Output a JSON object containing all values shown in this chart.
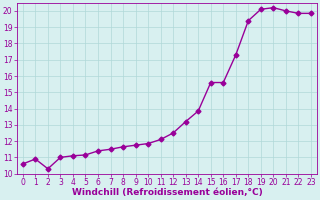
{
  "x": [
    0,
    1,
    2,
    3,
    4,
    5,
    6,
    7,
    8,
    9,
    10,
    11,
    12,
    13,
    14,
    15,
    16,
    17,
    18,
    19,
    20,
    21,
    22,
    23
  ],
  "y": [
    10.6,
    10.9,
    10.3,
    11.0,
    11.1,
    11.15,
    11.4,
    11.5,
    11.65,
    11.75,
    11.85,
    12.1,
    12.5,
    13.2,
    13.85,
    15.6,
    15.6,
    17.3,
    19.4,
    20.1,
    20.2,
    20.0,
    19.85,
    19.85
  ],
  "line_color": "#990099",
  "marker": "D",
  "marker_size": 2.5,
  "bg_color": "#d8f0f0",
  "grid_color": "#b0d8d8",
  "xlabel": "Windchill (Refroidissement éolien,°C)",
  "ylabel": "",
  "xlim": [
    -0.5,
    23.5
  ],
  "ylim": [
    10.0,
    20.5
  ],
  "yticks": [
    10,
    11,
    12,
    13,
    14,
    15,
    16,
    17,
    18,
    19,
    20
  ],
  "xticks": [
    0,
    1,
    2,
    3,
    4,
    5,
    6,
    7,
    8,
    9,
    10,
    11,
    12,
    13,
    14,
    15,
    16,
    17,
    18,
    19,
    20,
    21,
    22,
    23
  ],
  "tick_label_fontsize": 5.5,
  "xlabel_fontsize": 6.5,
  "line_width": 1.0
}
